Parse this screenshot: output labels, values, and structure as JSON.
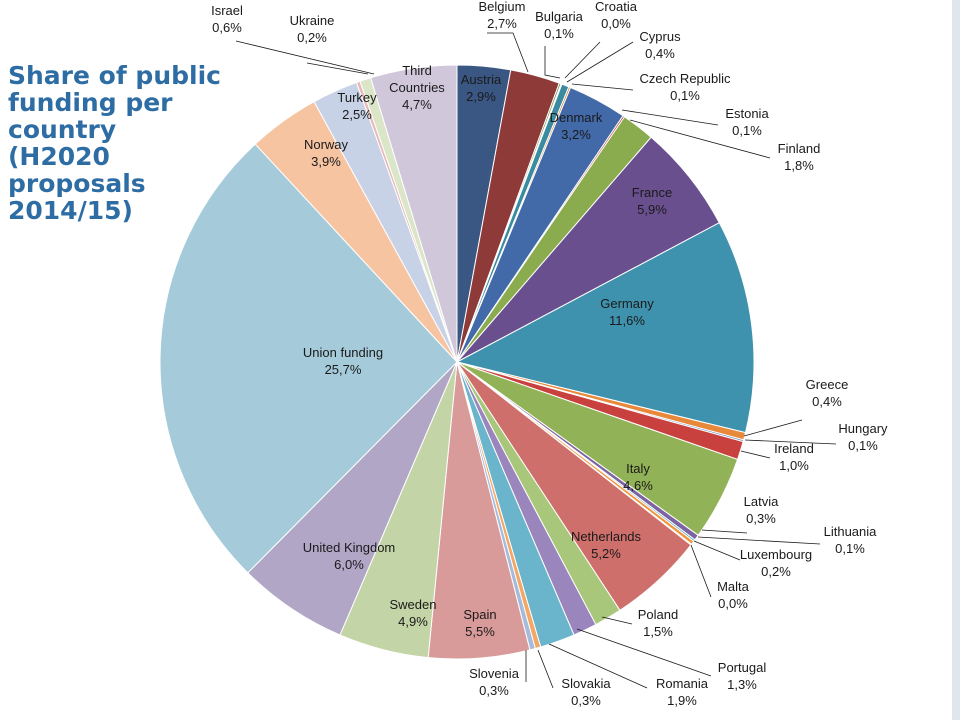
{
  "chart_data": {
    "type": "pie",
    "title": "Share of public funding per country (H2020 proposals 2014/15)",
    "slices": [
      {
        "name": "Austria",
        "value": "2,9%",
        "share": 2.9,
        "color": "#3a5683"
      },
      {
        "name": "Belgium",
        "value": "2,7%",
        "share": 2.7,
        "color": "#8e3a38"
      },
      {
        "name": "Bulgaria",
        "value": "0,1%",
        "share": 0.1,
        "color": "#6d8d3c"
      },
      {
        "name": "Croatia",
        "value": "0,0%",
        "share": 0.05,
        "color": "#5b4a7a"
      },
      {
        "name": "Cyprus",
        "value": "0,4%",
        "share": 0.4,
        "color": "#3a8aa0"
      },
      {
        "name": "Czech Republic",
        "value": "0,1%",
        "share": 0.1,
        "color": "#d9803a"
      },
      {
        "name": "Denmark",
        "value": "3,2%",
        "share": 3.2,
        "color": "#4269a8"
      },
      {
        "name": "Estonia",
        "value": "0,1%",
        "share": 0.1,
        "color": "#c0504d"
      },
      {
        "name": "Finland",
        "value": "1,8%",
        "share": 1.8,
        "color": "#8aab4e"
      },
      {
        "name": "France",
        "value": "5,9%",
        "share": 5.9,
        "color": "#6a4f8f"
      },
      {
        "name": "Germany",
        "value": "11,6%",
        "share": 11.6,
        "color": "#3f92ad"
      },
      {
        "name": "Greece",
        "value": "0,4%",
        "share": 0.4,
        "color": "#e8883a"
      },
      {
        "name": "Hungary",
        "value": "0,1%",
        "share": 0.1,
        "color": "#5f80b8"
      },
      {
        "name": "Ireland",
        "value": "1,0%",
        "share": 1.0,
        "color": "#c9413e"
      },
      {
        "name": "Italy",
        "value": "4,6%",
        "share": 4.6,
        "color": "#92b257"
      },
      {
        "name": "Latvia",
        "value": "0,3%",
        "share": 0.3,
        "color": "#7c64a3"
      },
      {
        "name": "Lithuania",
        "value": "0,1%",
        "share": 0.1,
        "color": "#4aa6c2"
      },
      {
        "name": "Luxembourg",
        "value": "0,2%",
        "share": 0.2,
        "color": "#f0963f"
      },
      {
        "name": "Malta",
        "value": "0,0%",
        "share": 0.05,
        "color": "#8fa7cf"
      },
      {
        "name": "Netherlands",
        "value": "5,2%",
        "share": 5.2,
        "color": "#cf6f6c"
      },
      {
        "name": "Poland",
        "value": "1,5%",
        "share": 1.5,
        "color": "#a9c77a"
      },
      {
        "name": "Portugal",
        "value": "1,3%",
        "share": 1.3,
        "color": "#9a86bd"
      },
      {
        "name": "Romania",
        "value": "1,9%",
        "share": 1.9,
        "color": "#6ab5cc"
      },
      {
        "name": "Slovakia",
        "value": "0,3%",
        "share": 0.3,
        "color": "#f3a766"
      },
      {
        "name": "Slovenia",
        "value": "0,3%",
        "share": 0.3,
        "color": "#a6bbdc"
      },
      {
        "name": "Spain",
        "value": "5,5%",
        "share": 5.5,
        "color": "#d99b9a"
      },
      {
        "name": "Sweden",
        "value": "4,9%",
        "share": 4.9,
        "color": "#c3d4a6"
      },
      {
        "name": "United Kingdom",
        "value": "6,0%",
        "share": 6.0,
        "color": "#b2a6c6"
      },
      {
        "name": "Union funding",
        "value": "25,7%",
        "share": 25.7,
        "color": "#a5cbdb"
      },
      {
        "name": "Norway",
        "value": "3,9%",
        "share": 3.9,
        "color": "#f7c4a2"
      },
      {
        "name": "Turkey",
        "value": "2,5%",
        "share": 2.5,
        "color": "#c7d2e6"
      },
      {
        "name": "Ukraine",
        "value": "0,2%",
        "share": 0.2,
        "color": "#e8b9b8"
      },
      {
        "name": "Israel",
        "value": "0,6%",
        "share": 0.6,
        "color": "#dbe6c8"
      },
      {
        "name": "Third Countries",
        "value": "4,7%",
        "share": 4.7,
        "color": "#d0c8da"
      }
    ]
  }
}
